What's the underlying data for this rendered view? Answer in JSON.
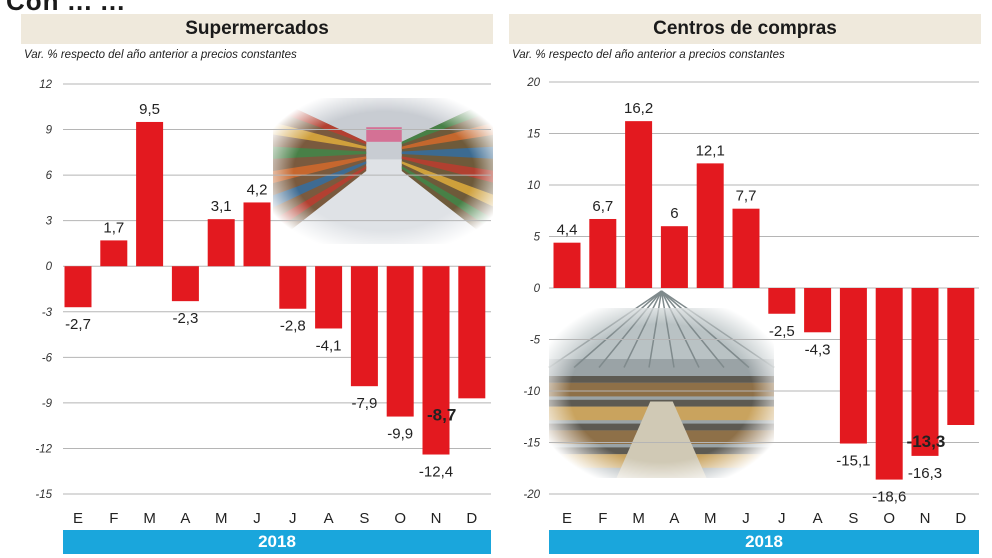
{
  "partial_title": "Con    ...  ...",
  "year_label": "2018",
  "colors": {
    "bar": "#e3191f",
    "header_bg": "#efe9dc",
    "year_bg": "#1aa6dc",
    "grid": "#b5b5b5"
  },
  "chart_data": [
    {
      "type": "bar",
      "title": "Supermercados",
      "subtitle": "Var. % respecto del año anterior a precios constantes",
      "categories": [
        "E",
        "F",
        "M",
        "A",
        "M",
        "J",
        "J",
        "A",
        "S",
        "O",
        "N",
        "D"
      ],
      "values": [
        -2.7,
        1.7,
        9.5,
        -2.3,
        3.1,
        4.2,
        -2.8,
        -4.1,
        -7.9,
        -9.9,
        -12.4,
        -8.7
      ],
      "value_labels": [
        "-2,7",
        "1,7",
        "9,5",
        "-2,3",
        "3,1",
        "4,2",
        "-2,8",
        "-4,1",
        "-7,9",
        "-9,9",
        "-12,4",
        "-8,7"
      ],
      "ylim": [
        -15,
        12
      ],
      "yticks": [
        12,
        9,
        6,
        3,
        0,
        -3,
        -6,
        -9,
        -12,
        -15
      ],
      "ytick_labels": [
        "12",
        "9",
        "6",
        "3",
        "0",
        "-3",
        "-6",
        "-9",
        "-12",
        "-15"
      ],
      "grid": true,
      "image": "supermarket-aisle-photo"
    },
    {
      "type": "bar",
      "title": "Centros de compras",
      "subtitle": "Var. % respecto del año anterior a precios constantes",
      "categories": [
        "E",
        "F",
        "M",
        "A",
        "M",
        "J",
        "J",
        "A",
        "S",
        "O",
        "N",
        "D"
      ],
      "values": [
        4.4,
        6.7,
        16.2,
        6,
        12.1,
        7.7,
        -2.5,
        -4.3,
        -15.1,
        -18.6,
        -16.3,
        -13.3
      ],
      "value_labels": [
        "4,4",
        "6,7",
        "16,2",
        "6",
        "12,1",
        "7,7",
        "-2,5",
        "-4,3",
        "-15,1",
        "-18,6",
        "-16,3",
        "-13,3"
      ],
      "ylim": [
        -20,
        20
      ],
      "yticks": [
        20,
        15,
        10,
        5,
        0,
        -5,
        -10,
        -15,
        -20
      ],
      "ytick_labels": [
        "20",
        "15",
        "10",
        "5",
        "0",
        "-5",
        "-10",
        "-15",
        "-20"
      ],
      "grid": true,
      "image": "shopping-mall-photo"
    }
  ]
}
